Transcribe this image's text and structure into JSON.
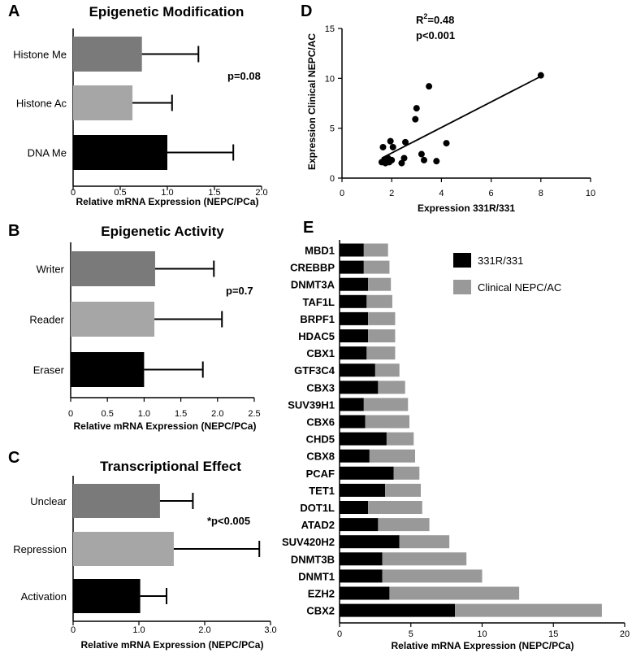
{
  "chart_data": [
    {
      "type": "bar",
      "orientation": "horizontal",
      "panel": "A",
      "title": "Epigenetic Modification",
      "categories": [
        "Histone Me",
        "Histone Ac",
        "DNA Me"
      ],
      "values": [
        0.73,
        0.63,
        1.0
      ],
      "errors": [
        0.6,
        0.42,
        0.7
      ],
      "colors": [
        "#7a7a7a",
        "#a6a6a6",
        "#000000"
      ],
      "xlim": [
        0,
        2.0
      ],
      "xticks": [
        "0",
        "0.5",
        "1.0",
        "1.5",
        "2.0"
      ],
      "xlabel": "Relative mRNA Expression (NEPC/PCa)",
      "annotation": "p=0.08"
    },
    {
      "type": "bar",
      "orientation": "horizontal",
      "panel": "B",
      "title": "Epigenetic Activity",
      "categories": [
        "Writer",
        "Reader",
        "Eraser"
      ],
      "values": [
        1.15,
        1.14,
        1.0
      ],
      "errors": [
        0.8,
        0.92,
        0.8
      ],
      "colors": [
        "#7a7a7a",
        "#a6a6a6",
        "#000000"
      ],
      "xlim": [
        0,
        2.5
      ],
      "xticks": [
        "0",
        "0.5",
        "1.0",
        "1.5",
        "2.0",
        "2.5"
      ],
      "xlabel": "Relative mRNA Expression (NEPC/PCa)",
      "annotation": "p=0.7"
    },
    {
      "type": "bar",
      "orientation": "horizontal",
      "panel": "C",
      "title": "Transcriptional Effect",
      "categories": [
        "Unclear",
        "Repression",
        "Activation"
      ],
      "values": [
        1.32,
        1.53,
        1.02
      ],
      "errors": [
        0.5,
        1.3,
        0.4
      ],
      "colors": [
        "#7a7a7a",
        "#a6a6a6",
        "#000000"
      ],
      "xlim": [
        0,
        3.0
      ],
      "xticks": [
        "0",
        "1.0",
        "2.0",
        "3.0"
      ],
      "xlabel": "Relative mRNA Expression (NEPC/PCa)",
      "annotation": "*p<0.005"
    },
    {
      "type": "scatter",
      "panel": "D",
      "xlabel": "Expression 331R/331",
      "ylabel": "Expression Clinical NEPC/AC",
      "xlim": [
        0,
        10
      ],
      "ylim": [
        0,
        15
      ],
      "xticks": [
        "0",
        "2",
        "4",
        "6",
        "8",
        "10"
      ],
      "yticks": [
        "0",
        "5",
        "10",
        "15"
      ],
      "r2_prefix": "R",
      "r2_exp": "2",
      "r2_value": "=0.48",
      "pvalue": "p<0.001",
      "points": [
        [
          1.65,
          3.1
        ],
        [
          1.6,
          1.6
        ],
        [
          1.7,
          1.8
        ],
        [
          1.75,
          1.5
        ],
        [
          1.8,
          1.7
        ],
        [
          1.85,
          2.0
        ],
        [
          1.9,
          1.6
        ],
        [
          2.0,
          1.8
        ],
        [
          1.95,
          3.7
        ],
        [
          2.05,
          3.1
        ],
        [
          2.4,
          1.5
        ],
        [
          2.5,
          2.0
        ],
        [
          2.55,
          3.6
        ],
        [
          2.95,
          5.9
        ],
        [
          3.0,
          7.0
        ],
        [
          3.2,
          2.4
        ],
        [
          3.3,
          1.8
        ],
        [
          3.5,
          9.2
        ],
        [
          3.8,
          1.7
        ],
        [
          4.2,
          3.5
        ],
        [
          8.0,
          10.3
        ]
      ],
      "fit_line": {
        "x": [
          1.6,
          8.0
        ],
        "y": [
          2.0,
          10.2
        ]
      }
    },
    {
      "type": "bar",
      "orientation": "horizontal",
      "stacked": true,
      "panel": "E",
      "categories": [
        "MBD1",
        "CREBBP",
        "DNMT3A",
        "TAF1L",
        "BRPF1",
        "HDAC5",
        "CBX1",
        "GTF3C4",
        "CBX3",
        "SUV39H1",
        "CBX6",
        "CHD5",
        "CBX8",
        "PCAF",
        "TET1",
        "DOT1L",
        "ATAD2",
        "SUV420H2",
        "DNMT3B",
        "DNMT1",
        "EZH2",
        "CBX2"
      ],
      "series": [
        {
          "name": "331R/331",
          "color": "#000000",
          "values": [
            1.7,
            1.7,
            2.0,
            1.9,
            2.0,
            2.0,
            1.9,
            2.5,
            2.7,
            1.7,
            1.8,
            3.3,
            2.1,
            3.8,
            3.2,
            2.0,
            2.7,
            4.2,
            3.0,
            3.0,
            3.5,
            8.1
          ]
        },
        {
          "name": "Clinical NEPC/AC",
          "color": "#999999",
          "values": [
            1.7,
            1.8,
            1.6,
            1.8,
            1.9,
            1.9,
            2.0,
            1.7,
            1.9,
            3.1,
            3.1,
            1.9,
            3.2,
            1.8,
            2.5,
            3.8,
            3.6,
            3.5,
            5.9,
            7.0,
            9.1,
            10.3
          ]
        }
      ],
      "xlim": [
        0,
        20
      ],
      "xticks": [
        "0",
        "5",
        "10",
        "15",
        "20"
      ],
      "xlabel": "Relative mRNA Expression (NEPC/PCa)",
      "legend_placement": "top-right"
    }
  ]
}
